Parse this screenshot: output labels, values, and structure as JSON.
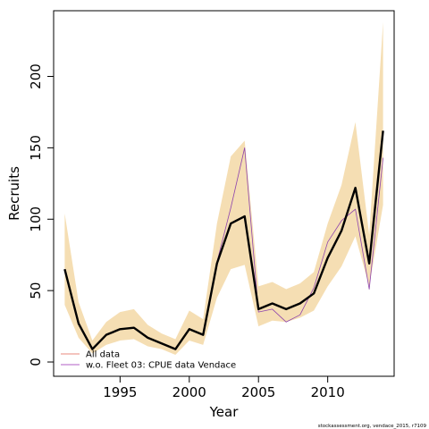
{
  "chart_data": {
    "type": "line",
    "title": "",
    "xlabel": "Year",
    "ylabel": "Recruits",
    "xlim": [
      1990.2,
      2014.8
    ],
    "ylim": [
      -10,
      246
    ],
    "x_ticks": [
      1995,
      2000,
      2005,
      2010
    ],
    "y_ticks": [
      0,
      50,
      100,
      150,
      200
    ],
    "grid": false,
    "legend_position": "bottom-left",
    "x": [
      1991,
      1992,
      1993,
      1994,
      1995,
      1996,
      1997,
      1998,
      1999,
      2000,
      2001,
      2002,
      2003,
      2004,
      2005,
      2006,
      2007,
      2008,
      2009,
      2010,
      2011,
      2012,
      2013,
      2014
    ],
    "band": {
      "name": "",
      "color": "#f5deb3",
      "lower": [
        40,
        17,
        6,
        12,
        15,
        16,
        11,
        9,
        5,
        15,
        12,
        45,
        65,
        68,
        25,
        29,
        28,
        31,
        36,
        53,
        67,
        88,
        53,
        110
      ],
      "upper": [
        104,
        42,
        15,
        28,
        35,
        37,
        26,
        20,
        16,
        36,
        30,
        97,
        144,
        155,
        53,
        56,
        51,
        55,
        63,
        97,
        124,
        168,
        89,
        238
      ]
    },
    "series": [
      {
        "name": "All data",
        "color": "#000000",
        "values": [
          65,
          27,
          9,
          19,
          23,
          24,
          17,
          13,
          9,
          23,
          19,
          69,
          97,
          102,
          37,
          41,
          37,
          41,
          48,
          73,
          92,
          122,
          69,
          162
        ]
      },
      {
        "name": "w.o. Fleet 03:  CPUE data Vendace",
        "color": "#8e44ad",
        "values": [
          65,
          28,
          9,
          19,
          23,
          24,
          17,
          13,
          9,
          23,
          19,
          70,
          108,
          150,
          35,
          37,
          28,
          33,
          52,
          84,
          99,
          107,
          51,
          143
        ]
      }
    ],
    "legend": [
      {
        "label": "All data",
        "color": "#e9897e"
      },
      {
        "label": "w.o. Fleet 03:  CPUE data Vendace",
        "color": "#b15fc4"
      }
    ]
  },
  "footer": {
    "credit": "stockassessment.org,  vendace_2015, r7109"
  }
}
